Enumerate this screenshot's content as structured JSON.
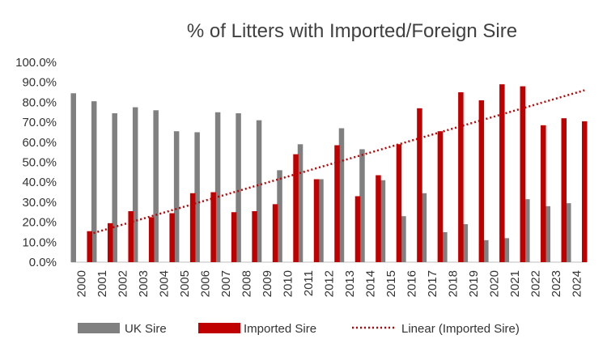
{
  "chart_data": {
    "type": "bar",
    "title": "% of Litters with Imported/Foreign Sire",
    "xlabel": "",
    "ylabel": "",
    "ylim": [
      0,
      100
    ],
    "ytick_step": 10,
    "ytick_labels": [
      "0.0%",
      "10.0%",
      "20.0%",
      "30.0%",
      "40.0%",
      "50.0%",
      "60.0%",
      "70.0%",
      "80.0%",
      "90.0%",
      "100.0%"
    ],
    "categories": [
      "2000",
      "2001",
      "2002",
      "2003",
      "2004",
      "2005",
      "2006",
      "2007",
      "2008",
      "2009",
      "2010",
      "2011",
      "2012",
      "2013",
      "2014",
      "2015",
      "2016",
      "2017",
      "2018",
      "2019",
      "2020",
      "2021",
      "2022",
      "2023",
      "2024"
    ],
    "series": [
      {
        "name": "UK Sire",
        "color": "#808080",
        "values": [
          84.5,
          80.5,
          74.5,
          77.5,
          76.0,
          65.5,
          65.0,
          75.0,
          74.5,
          71.0,
          46.0,
          59.0,
          41.5,
          67.0,
          56.5,
          41.0,
          23.0,
          34.5,
          15.0,
          19.0,
          11.0,
          12.0,
          31.5,
          28.0,
          29.5
        ]
      },
      {
        "name": "Imported Sire",
        "color": "#C00000",
        "values": [
          15.5,
          19.5,
          25.5,
          22.5,
          24.5,
          34.5,
          35.0,
          25.0,
          25.5,
          29.0,
          54.0,
          41.5,
          58.5,
          33.0,
          43.5,
          59.0,
          77.0,
          65.5,
          85.0,
          81.0,
          89.0,
          88.0,
          68.5,
          72.0,
          70.5
        ]
      }
    ],
    "trendline": {
      "name": "Linear (Imported Sire)",
      "series": "Imported Sire",
      "color": "#C00000",
      "style": "dotted",
      "start_value": 14.0,
      "end_value": 86.0
    },
    "grid": false,
    "legend": "bottom"
  }
}
